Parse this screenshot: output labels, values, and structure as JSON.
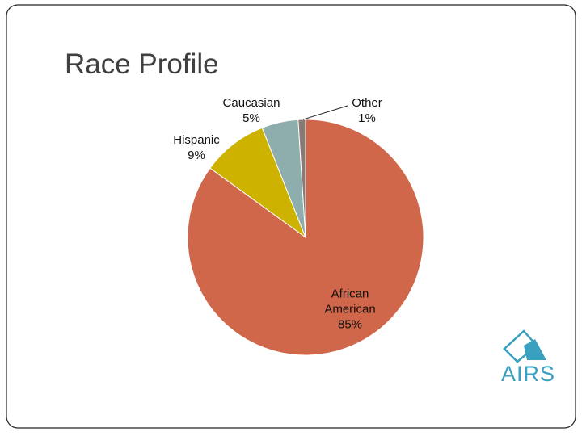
{
  "chart_data": {
    "type": "pie",
    "title": "Race Profile",
    "categories": [
      "African American",
      "Hispanic",
      "Caucasian",
      "Other"
    ],
    "values": [
      85,
      9,
      5,
      1
    ],
    "value_labels": [
      "85%",
      "9%",
      "5%",
      "1%"
    ],
    "colors": [
      "#d0664a",
      "#cdb200",
      "#8eaeae",
      "#8a7a74"
    ]
  },
  "logo": "AIRS"
}
